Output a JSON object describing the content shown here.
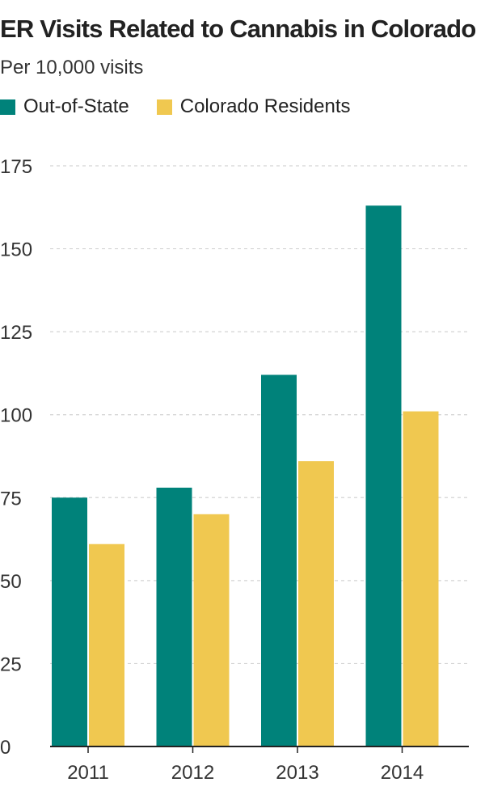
{
  "chart_data": {
    "type": "bar",
    "title": "ER Visits Related to Cannabis in Colorado",
    "subtitle": "Per 10,000 visits",
    "categories": [
      "2011",
      "2012",
      "2013",
      "2014"
    ],
    "series": [
      {
        "name": "Out-of-State",
        "color": "#00827a",
        "values": [
          75,
          78,
          112,
          163
        ]
      },
      {
        "name": "Colorado Residents",
        "color": "#f0c850",
        "values": [
          61,
          70,
          86,
          101
        ]
      }
    ],
    "y_ticks": [
      0,
      25,
      50,
      75,
      100,
      125,
      150,
      175
    ],
    "ylim": [
      0,
      175
    ],
    "xlabel": "",
    "ylabel": "",
    "grid": true,
    "legend_position": "top-left"
  }
}
